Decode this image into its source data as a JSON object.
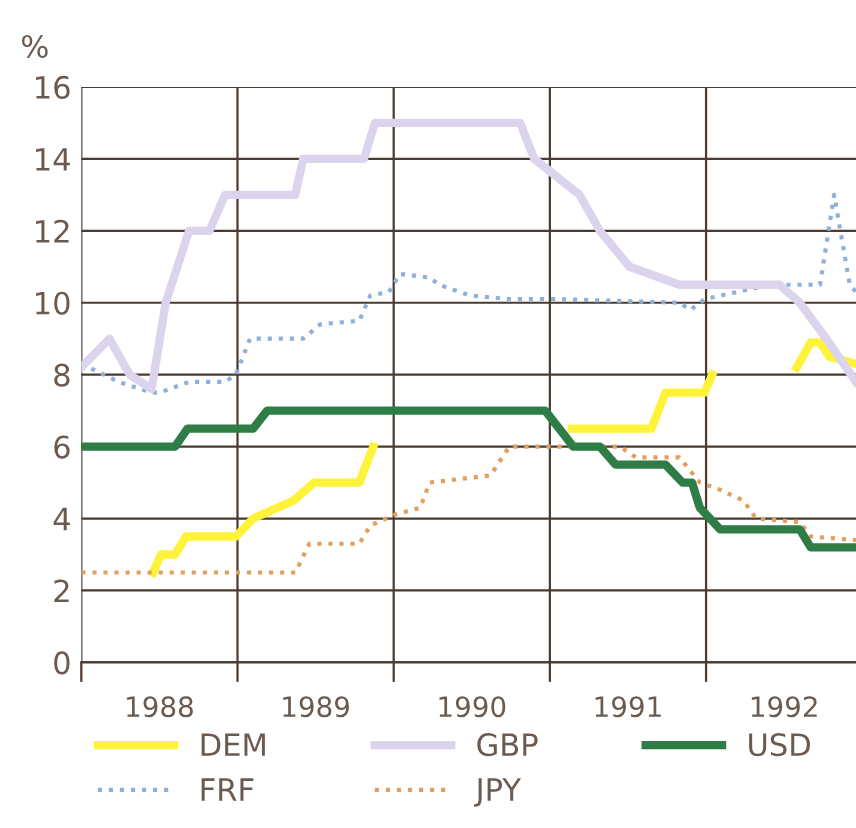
{
  "chart_data": {
    "type": "line",
    "ylabel": "%",
    "xlim": [
      1988,
      1992.96
    ],
    "ylim": [
      0,
      16
    ],
    "yticks": [
      0,
      2,
      4,
      6,
      8,
      10,
      12,
      14,
      16
    ],
    "xticks": [
      {
        "value": 1988,
        "label": null
      },
      {
        "value": 1989,
        "label": null
      },
      {
        "value": 1990,
        "label": null
      },
      {
        "value": 1991,
        "label": null
      },
      {
        "value": 1992,
        "label": null
      },
      {
        "value": 1988.5,
        "label": "1988"
      },
      {
        "value": 1989.5,
        "label": "1989"
      },
      {
        "value": 1990.5,
        "label": "1990"
      },
      {
        "value": 1991.5,
        "label": "1991"
      },
      {
        "value": 1992.5,
        "label": "1992"
      }
    ],
    "grid": true,
    "legend": "bottom",
    "series": [
      {
        "name": "DEM",
        "color": "#fff23a",
        "line_style": "solid",
        "x": [
          1988.46,
          1988.51,
          1988.6,
          1988.67,
          1988.99,
          1989.1,
          1989.36,
          1989.49,
          1989.78,
          1989.87,
          1990.5,
          1991.14,
          1991.65,
          1991.74,
          1991.99,
          1992.04,
          1992.3,
          1992.58,
          1992.67,
          1992.73,
          1992.79,
          1992.96
        ],
        "values": [
          2.5,
          3.0,
          3.0,
          3.5,
          3.5,
          4.0,
          4.5,
          5.0,
          5.0,
          6.0,
          null,
          6.5,
          6.5,
          7.5,
          7.5,
          8.0,
          null,
          8.2,
          8.9,
          8.9,
          8.5,
          8.3
        ]
      },
      {
        "name": "FRF",
        "color": "#8fb0d8",
        "line_style": "dotted",
        "x": [
          1988,
          1988.24,
          1988.45,
          1988.5,
          1988.69,
          1988.92,
          1988.99,
          1989.08,
          1989.42,
          1989.53,
          1989.78,
          1989.85,
          1989.97,
          1990.04,
          1990.23,
          1990.29,
          1990.49,
          1990.74,
          1991.06,
          1991.83,
          1991.9,
          1991.99,
          1992.41,
          1992.73,
          1992.82,
          1992.92,
          1992.96
        ],
        "values": [
          8.3,
          7.8,
          7.5,
          7.5,
          7.8,
          7.8,
          8.0,
          9.0,
          9.0,
          9.4,
          9.5,
          10.2,
          10.3,
          10.8,
          10.7,
          10.5,
          10.2,
          10.1,
          10.1,
          10.0,
          9.8,
          10.1,
          10.5,
          10.5,
          13.0,
          10.5,
          10.3
        ]
      },
      {
        "name": "GBP",
        "color": "#dcd4ec",
        "line_style": "solid",
        "x": [
          1988,
          1988.18,
          1988.31,
          1988.45,
          1988.54,
          1988.69,
          1988.82,
          1988.92,
          1989.37,
          1989.42,
          1989.81,
          1989.88,
          1990.81,
          1990.9,
          1991.19,
          1991.32,
          1991.51,
          1991.83,
          1992.47,
          1992.6,
          1992.77,
          1992.96
        ],
        "values": [
          8.2,
          9.0,
          8.0,
          7.6,
          10.0,
          12.0,
          12.0,
          13.0,
          13.0,
          14.0,
          14.0,
          15.0,
          15.0,
          14.0,
          13.0,
          12.0,
          11.0,
          10.5,
          10.5,
          10.0,
          9.0,
          7.8
        ]
      },
      {
        "name": "JPY",
        "color": "#e0a060",
        "line_style": "dotted",
        "x": [
          1988,
          1989.37,
          1989.46,
          1989.78,
          1989.85,
          1990.0,
          1990.17,
          1990.23,
          1990.62,
          1990.74,
          1991.45,
          1991.55,
          1991.83,
          1991.96,
          1992.09,
          1992.24,
          1992.32,
          1992.6,
          1992.67,
          1992.96
        ],
        "values": [
          2.5,
          2.5,
          3.3,
          3.3,
          3.8,
          4.1,
          4.3,
          5.0,
          5.2,
          6.0,
          6.0,
          5.7,
          5.7,
          5.0,
          4.8,
          4.5,
          4.0,
          3.9,
          3.5,
          3.4
        ]
      },
      {
        "name": "USD",
        "color": "#2e7d46",
        "line_style": "solid",
        "x": [
          1988,
          1988.6,
          1988.68,
          1989.1,
          1989.19,
          1990.97,
          1991.15,
          1991.32,
          1991.42,
          1991.74,
          1991.85,
          1991.91,
          1991.96,
          1992.09,
          1992.6,
          1992.67,
          1992.96
        ],
        "values": [
          6.0,
          6.0,
          6.5,
          6.5,
          7.0,
          7.0,
          6.0,
          6.0,
          5.5,
          5.5,
          5.0,
          5.0,
          4.3,
          3.7,
          3.7,
          3.2,
          3.2
        ]
      }
    ]
  }
}
